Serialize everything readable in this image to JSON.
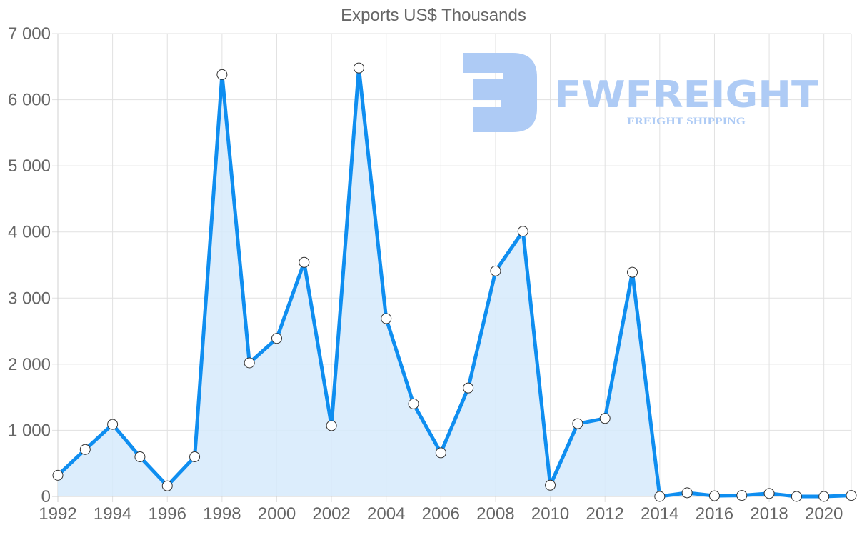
{
  "chart_data": {
    "type": "line",
    "title": "Exports US$ Thousands",
    "xlabel": "",
    "ylabel": "",
    "ylim": [
      0,
      7000
    ],
    "grid": true,
    "legend": null,
    "filled_area": true,
    "y_ticks": [
      "0",
      "1 000",
      "2 000",
      "3 000",
      "4 000",
      "5 000",
      "6 000",
      "7 000"
    ],
    "x_tick_labels": [
      "1992",
      "1994",
      "1996",
      "1998",
      "2000",
      "2002",
      "2004",
      "2006",
      "2008",
      "2010",
      "2012",
      "2014",
      "2016",
      "2018",
      "2020"
    ],
    "categories": [
      "1992",
      "1993",
      "1994",
      "1995",
      "1996",
      "1997",
      "1998",
      "1999",
      "2000",
      "2001",
      "2002",
      "2003",
      "2004",
      "2005",
      "2006",
      "2007",
      "2008",
      "2009",
      "2010",
      "2011",
      "2012",
      "2013",
      "2014",
      "2015",
      "2016",
      "2017",
      "2018",
      "2019",
      "2020",
      "2021"
    ],
    "series": [
      {
        "name": "Exports US$ Thousands",
        "values": [
          320,
          710,
          1090,
          600,
          160,
          600,
          6380,
          2020,
          2390,
          3540,
          1070,
          6480,
          2690,
          1400,
          660,
          1640,
          3410,
          4010,
          170,
          1100,
          1180,
          3390,
          0,
          55,
          10,
          15,
          45,
          0,
          0,
          15
        ]
      }
    ],
    "colors": {
      "line": "#0f8ef0",
      "fill": "#d6eafc",
      "grid": "#e1e1e1",
      "point_fill": "#ffffff",
      "point_stroke": "#333333"
    }
  },
  "watermark": {
    "brand": "FWFREIGHT",
    "tagline": "FREIGHT SHIPPING"
  }
}
